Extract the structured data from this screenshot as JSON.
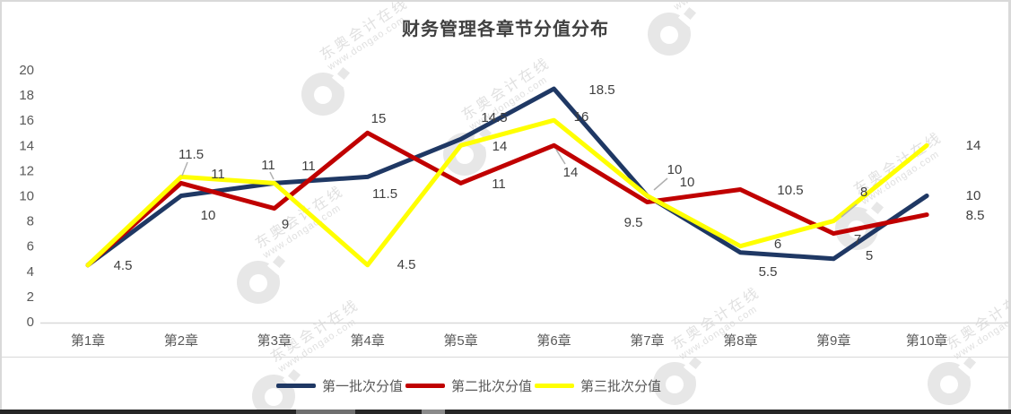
{
  "chart_data": {
    "type": "line",
    "title": "财务管理各章节分值分布",
    "categories": [
      "第1章",
      "第2章",
      "第3章",
      "第4章",
      "第5章",
      "第6章",
      "第7章",
      "第8章",
      "第9章",
      "第10章"
    ],
    "series": [
      {
        "name": "第一批次分值",
        "color": "#1F3864",
        "values": [
          4.5,
          10,
          11,
          11.5,
          14.5,
          18.5,
          10,
          5.5,
          5,
          10
        ]
      },
      {
        "name": "第二批次分值",
        "color": "#C00000",
        "values": [
          4.5,
          11,
          9,
          15,
          11,
          14,
          9.5,
          10.5,
          7,
          8.5
        ]
      },
      {
        "name": "第三批次分值",
        "color": "#FFFF00",
        "values": [
          4.5,
          11.5,
          11,
          4.5,
          14,
          16,
          10,
          6,
          8,
          14
        ]
      }
    ],
    "ylim": [
      0,
      20
    ],
    "yticks": [
      20,
      18,
      16,
      14,
      12,
      10,
      8,
      6,
      4,
      2,
      0
    ],
    "grid": false,
    "legend_position": "bottom"
  },
  "watermark": {
    "brand": "东奥会计在线",
    "url": "www.dongao.com"
  }
}
